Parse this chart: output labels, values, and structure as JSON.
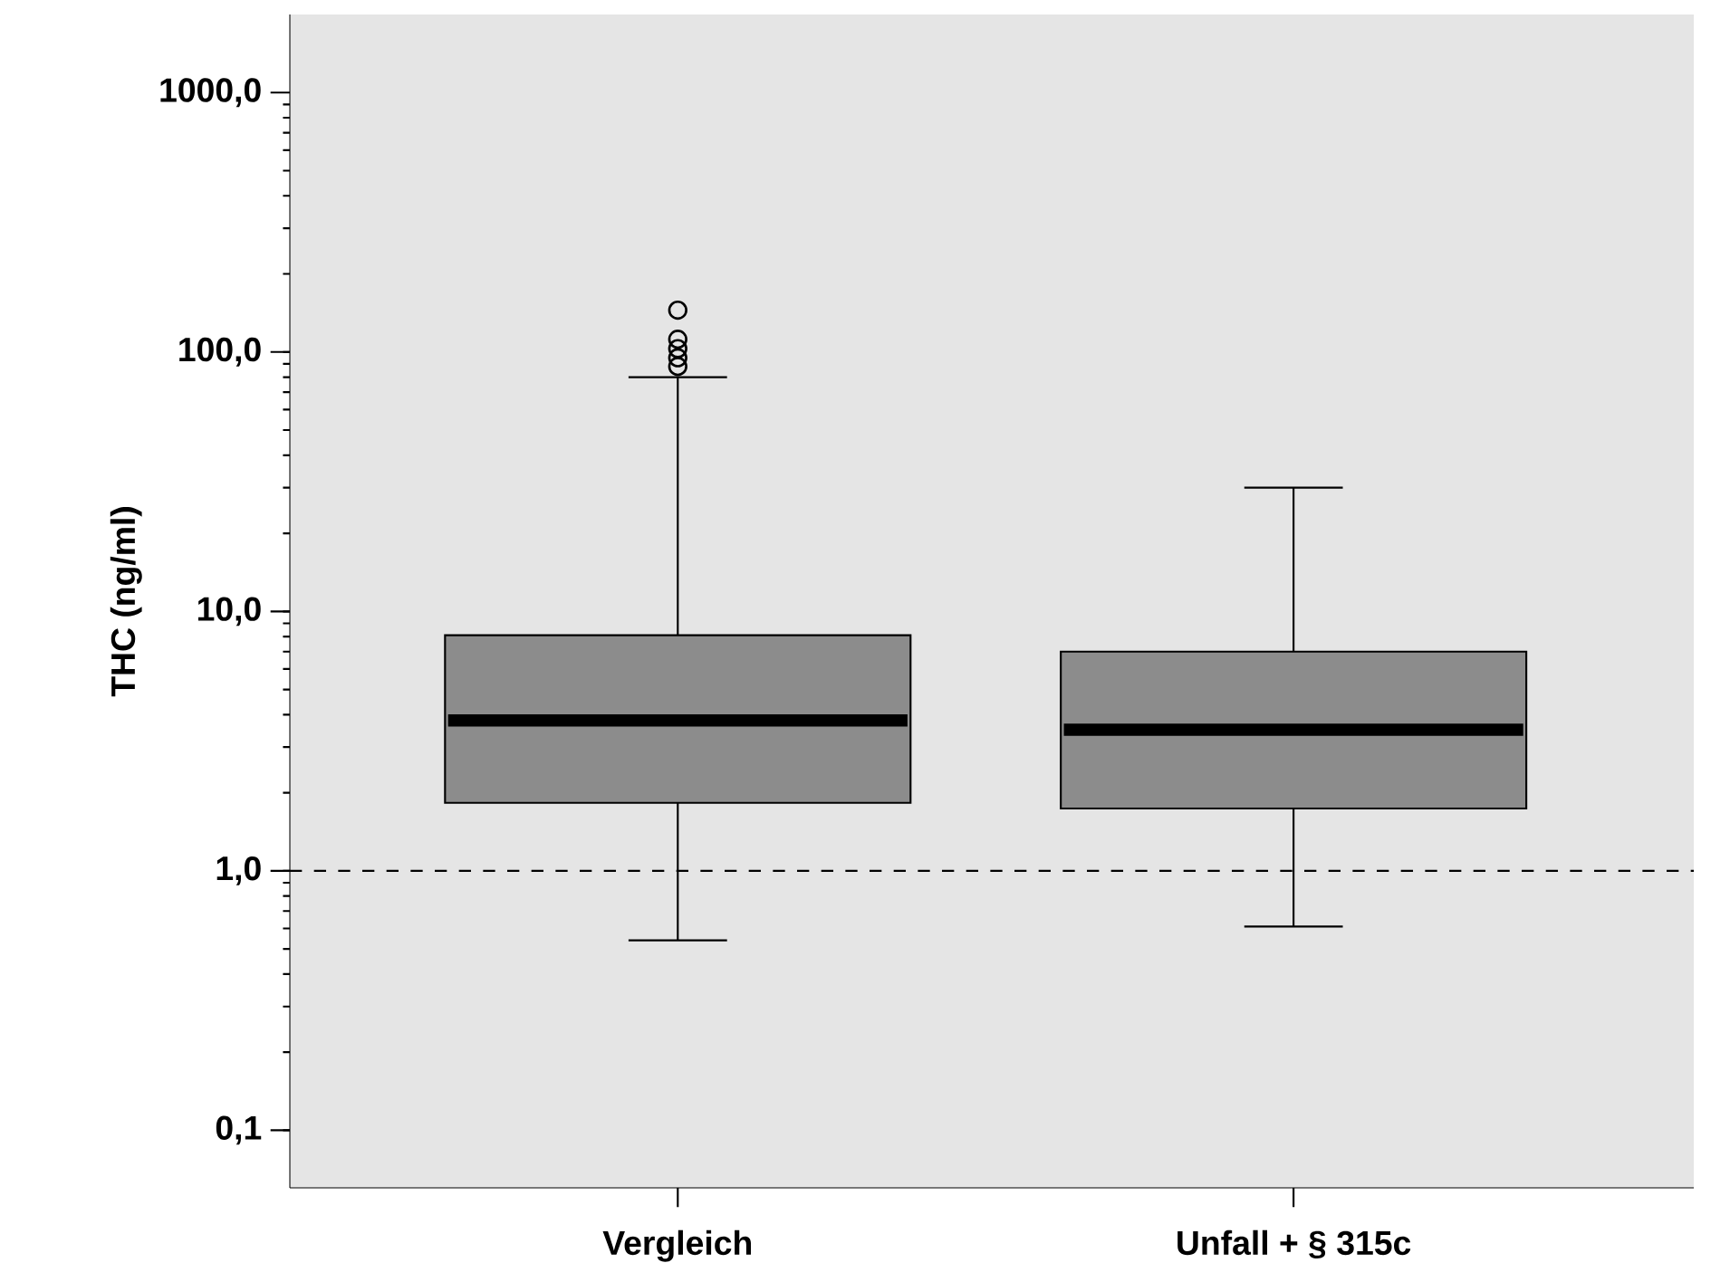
{
  "chart_data": {
    "type": "box",
    "ylabel": "THC (ng/ml)",
    "categories": [
      "Vergleich",
      "Unfall + § 315c"
    ],
    "boxes": [
      {
        "low": 0.54,
        "q1": 1.83,
        "median": 3.8,
        "q3": 8.1,
        "high": 80,
        "outliers": [
          145,
          112,
          103,
          95,
          88
        ]
      },
      {
        "low": 0.61,
        "q1": 1.74,
        "median": 3.5,
        "q3": 7.0,
        "high": 30
      }
    ],
    "color": "#8c8c8c",
    "marker": "circle",
    "log": true,
    "ylim": [
      0.06,
      2000
    ],
    "yticks": [
      {
        "value": 0.1,
        "label": "0,1"
      },
      {
        "value": 1,
        "label": "1,0"
      },
      {
        "value": 10,
        "label": "10,0"
      },
      {
        "value": 100,
        "label": "100,0"
      },
      {
        "value": 1000,
        "label": "1000,0"
      }
    ],
    "ref_lines": [
      {
        "axis": "y",
        "value": 1,
        "line_style": "dashed"
      }
    ]
  }
}
